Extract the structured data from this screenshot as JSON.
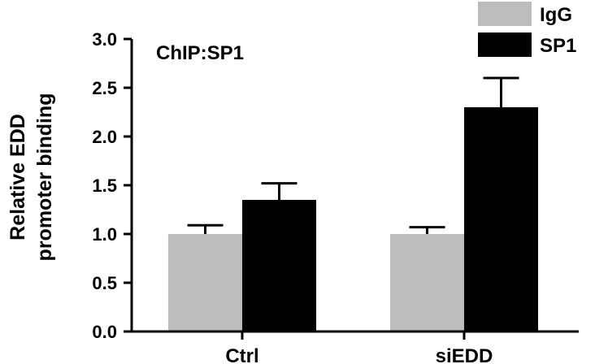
{
  "chart_data": {
    "type": "bar",
    "title": "",
    "annotation": "ChIP:SP1",
    "categories": [
      "Ctrl",
      "siEDD"
    ],
    "series": [
      {
        "name": "IgG",
        "color": "#bdbdbd",
        "values": [
          1.0,
          1.0
        ],
        "errors": [
          0.09,
          0.07
        ]
      },
      {
        "name": "SP1",
        "color": "#000000",
        "values": [
          1.35,
          2.3
        ],
        "errors": [
          0.17,
          0.3
        ]
      }
    ],
    "xlabel": "",
    "ylabel_lines": [
      "Relative EDD",
      "promoter binding"
    ],
    "ylim": [
      0,
      3.0
    ],
    "yticks": [
      "0.0",
      "0.5",
      "1.0",
      "1.5",
      "2.0",
      "2.5",
      "3.0"
    ],
    "grid": false,
    "legend_position": "top-right"
  }
}
